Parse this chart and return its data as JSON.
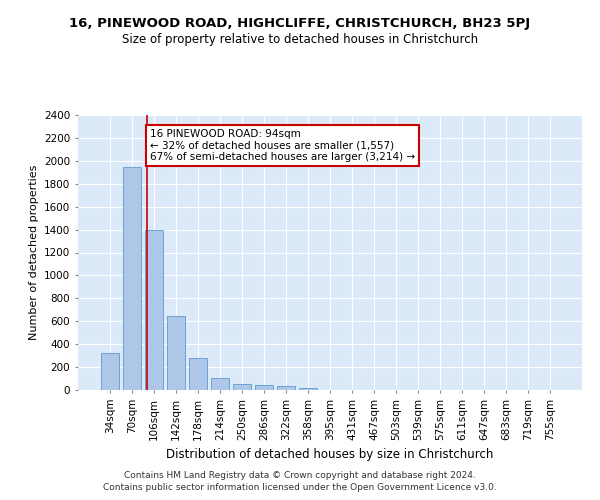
{
  "title": "16, PINEWOOD ROAD, HIGHCLIFFE, CHRISTCHURCH, BH23 5PJ",
  "subtitle": "Size of property relative to detached houses in Christchurch",
  "xlabel": "Distribution of detached houses by size in Christchurch",
  "ylabel": "Number of detached properties",
  "bin_labels": [
    "34sqm",
    "70sqm",
    "106sqm",
    "142sqm",
    "178sqm",
    "214sqm",
    "250sqm",
    "286sqm",
    "322sqm",
    "358sqm",
    "395sqm",
    "431sqm",
    "467sqm",
    "503sqm",
    "539sqm",
    "575sqm",
    "611sqm",
    "647sqm",
    "683sqm",
    "719sqm",
    "755sqm"
  ],
  "bar_values": [
    325,
    1950,
    1400,
    650,
    280,
    105,
    50,
    40,
    35,
    20,
    0,
    0,
    0,
    0,
    0,
    0,
    0,
    0,
    0,
    0,
    0
  ],
  "bar_color": "#aec6e8",
  "bar_edgecolor": "#5b9bd5",
  "bar_width": 0.8,
  "property_line_x": 1.67,
  "annotation_text_line1": "16 PINEWOOD ROAD: 94sqm",
  "annotation_text_line2": "← 32% of detached houses are smaller (1,557)",
  "annotation_text_line3": "67% of semi-detached houses are larger (3,214) →",
  "annotation_box_color": "#ffffff",
  "annotation_edge_color": "#cc0000",
  "vline_color": "#cc0000",
  "ylim": [
    0,
    2400
  ],
  "yticks": [
    0,
    200,
    400,
    600,
    800,
    1000,
    1200,
    1400,
    1600,
    1800,
    2000,
    2200,
    2400
  ],
  "footer1": "Contains HM Land Registry data © Crown copyright and database right 2024.",
  "footer2": "Contains public sector information licensed under the Open Government Licence v3.0.",
  "background_color": "#dce9f8",
  "grid_color": "#ffffff",
  "title_fontsize": 9.5,
  "subtitle_fontsize": 8.5,
  "ylabel_fontsize": 8,
  "xlabel_fontsize": 8.5,
  "tick_fontsize": 7.5,
  "annotation_fontsize": 7.5,
  "footer_fontsize": 6.5
}
